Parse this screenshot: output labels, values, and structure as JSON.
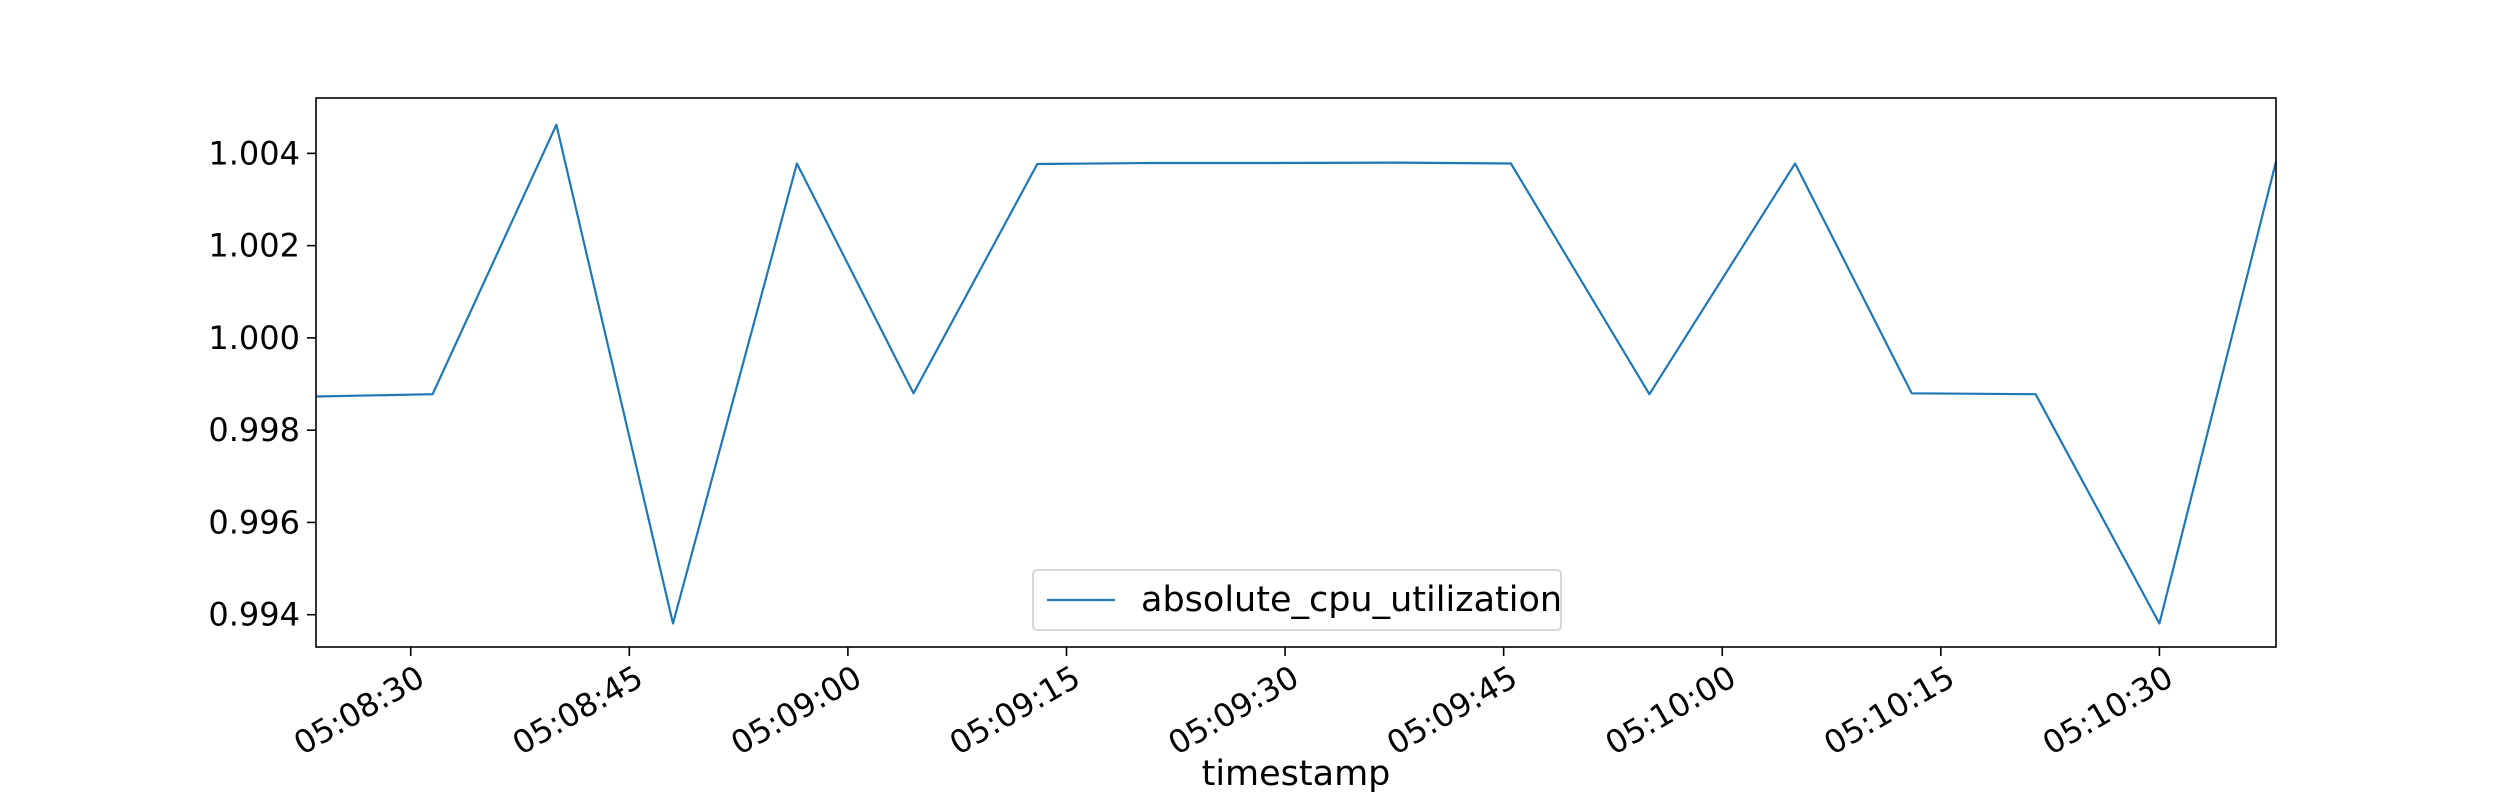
{
  "chart_data": {
    "type": "line",
    "title": "",
    "xlabel": "timestamp",
    "ylabel": "",
    "xlim": [
      "05:08:23.5",
      "05:10:38.0"
    ],
    "ylim": [
      0.9933,
      1.0052
    ],
    "grid": false,
    "legend_position": "lower center",
    "x_ticks": [
      "05:08:30",
      "05:08:45",
      "05:09:00",
      "05:09:15",
      "05:09:30",
      "05:09:45",
      "05:10:00",
      "05:10:15",
      "05:10:30"
    ],
    "y_ticks": [
      "0.994",
      "0.996",
      "0.998",
      "1.000",
      "1.002",
      "1.004"
    ],
    "series": [
      {
        "name": "absolute_cpu_utilization",
        "color": "#1f77b4",
        "x": [
          "05:08:23.5",
          "05:08:31.5",
          "05:08:40",
          "05:08:48",
          "05:08:56.5",
          "05:09:04.5",
          "05:09:13",
          "05:09:21",
          "05:09:29",
          "05:09:37.5",
          "05:09:45.5",
          "05:09:55",
          "05:10:05",
          "05:10:13",
          "05:10:21.5",
          "05:10:30",
          "05:10:38"
        ],
        "values": [
          0.99873,
          0.99878,
          1.00462,
          0.99381,
          1.00378,
          0.9988,
          1.00377,
          1.00379,
          1.00379,
          1.0038,
          1.00378,
          0.99878,
          1.00378,
          0.9988,
          0.99878,
          0.99381,
          1.00382
        ]
      }
    ]
  }
}
